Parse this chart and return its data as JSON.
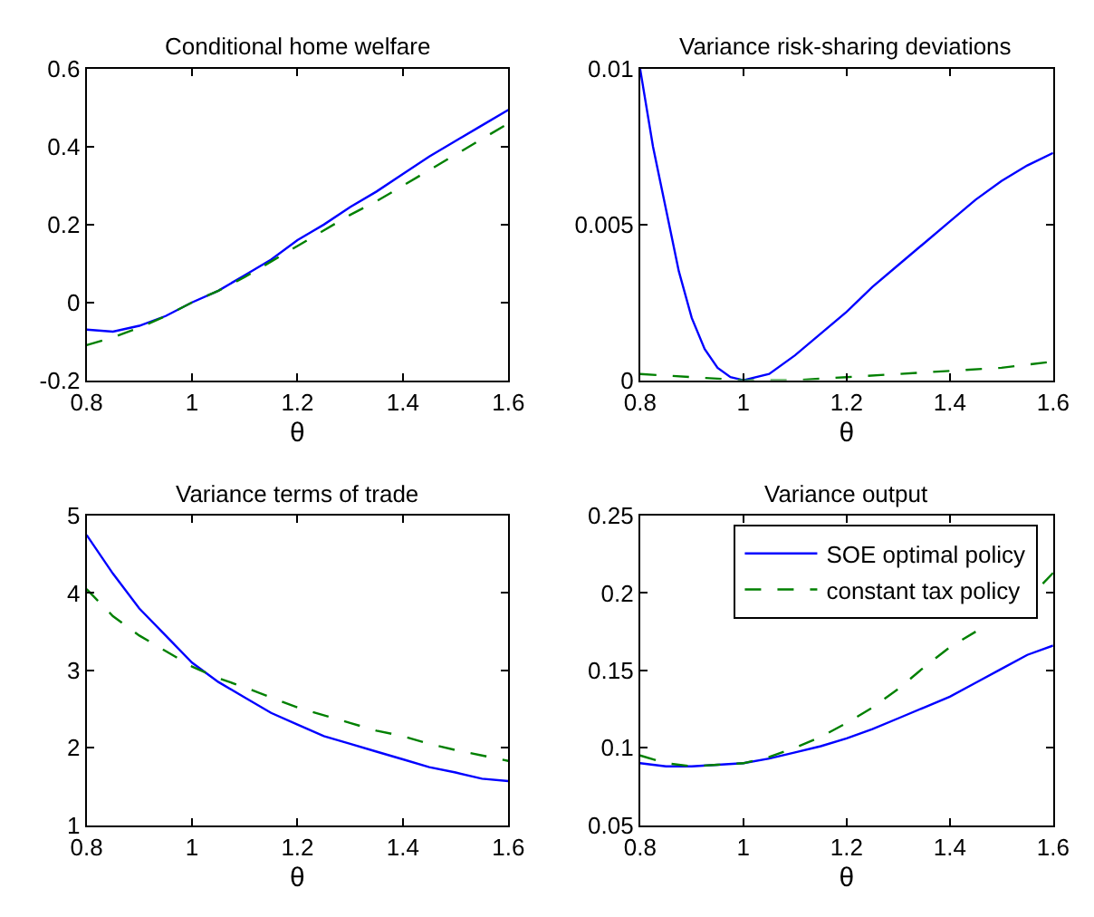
{
  "chart_data": [
    {
      "type": "line",
      "title": "Conditional home welfare",
      "xlabel": "θ",
      "xlim": [
        0.8,
        1.6
      ],
      "xticks": [
        0.8,
        1,
        1.2,
        1.4,
        1.6
      ],
      "ylim": [
        -0.2,
        0.6
      ],
      "yticks": [
        -0.2,
        0,
        0.2,
        0.4,
        0.6
      ],
      "grid": false,
      "x": [
        0.8,
        0.85,
        0.9,
        0.95,
        1.0,
        1.05,
        1.1,
        1.15,
        1.2,
        1.25,
        1.3,
        1.35,
        1.4,
        1.45,
        1.5,
        1.55,
        1.6
      ],
      "series": [
        {
          "color": "#0000ff",
          "line_style": "solid",
          "values": [
            -0.07,
            -0.075,
            -0.06,
            -0.035,
            0.0,
            0.03,
            0.07,
            0.11,
            0.16,
            0.2,
            0.245,
            0.285,
            0.33,
            0.375,
            0.415,
            0.455,
            0.495
          ]
        },
        {
          "color": "#008000",
          "line_style": "dashed",
          "values": [
            -0.11,
            -0.09,
            -0.065,
            -0.035,
            0.0,
            0.03,
            0.065,
            0.105,
            0.145,
            0.185,
            0.225,
            0.26,
            0.3,
            0.34,
            0.38,
            0.42,
            0.46
          ]
        }
      ]
    },
    {
      "type": "line",
      "title": "Variance risk-sharing deviations",
      "xlabel": "θ",
      "xlim": [
        0.8,
        1.6
      ],
      "xticks": [
        0.8,
        1,
        1.2,
        1.4,
        1.6
      ],
      "ylim": [
        0,
        0.01
      ],
      "yticks": [
        0,
        0.005,
        0.01
      ],
      "grid": false,
      "series": [
        {
          "color": "#0000ff",
          "line_style": "solid",
          "x": [
            0.8,
            0.825,
            0.85,
            0.875,
            0.9,
            0.925,
            0.95,
            0.975,
            1.0,
            1.05,
            1.1,
            1.15,
            1.2,
            1.25,
            1.3,
            1.35,
            1.4,
            1.45,
            1.5,
            1.55,
            1.6
          ],
          "values": [
            0.01,
            0.0075,
            0.0055,
            0.0035,
            0.002,
            0.001,
            0.0004,
            0.0001,
            0,
            0.0002,
            0.0008,
            0.0015,
            0.0022,
            0.003,
            0.0037,
            0.0044,
            0.0051,
            0.0058,
            0.0064,
            0.0069,
            0.0073
          ]
        },
        {
          "color": "#008000",
          "line_style": "dashed",
          "x": [
            0.8,
            0.9,
            1.0,
            1.1,
            1.2,
            1.3,
            1.4,
            1.5,
            1.6
          ],
          "values": [
            0.0002,
            0.0001,
            0,
            0,
            0.0001,
            0.0002,
            0.0003,
            0.0004,
            0.0006
          ]
        }
      ]
    },
    {
      "type": "line",
      "title": "Variance terms of trade",
      "xlabel": "θ",
      "xlim": [
        0.8,
        1.6
      ],
      "xticks": [
        0.8,
        1,
        1.2,
        1.4,
        1.6
      ],
      "ylim": [
        1,
        5
      ],
      "yticks": [
        1,
        2,
        3,
        4,
        5
      ],
      "grid": false,
      "x": [
        0.8,
        0.85,
        0.9,
        0.95,
        1.0,
        1.05,
        1.1,
        1.15,
        1.2,
        1.25,
        1.3,
        1.35,
        1.4,
        1.45,
        1.5,
        1.55,
        1.6
      ],
      "series": [
        {
          "color": "#0000ff",
          "line_style": "solid",
          "values": [
            4.75,
            4.25,
            3.8,
            3.45,
            3.1,
            2.85,
            2.65,
            2.45,
            2.3,
            2.15,
            2.05,
            1.95,
            1.85,
            1.75,
            1.68,
            1.6,
            1.57
          ]
        },
        {
          "color": "#008000",
          "line_style": "dashed",
          "values": [
            4.05,
            3.7,
            3.45,
            3.25,
            3.05,
            2.9,
            2.78,
            2.65,
            2.52,
            2.42,
            2.32,
            2.22,
            2.15,
            2.05,
            1.97,
            1.9,
            1.83
          ]
        }
      ]
    },
    {
      "type": "line",
      "title": "Variance output",
      "xlabel": "θ",
      "xlim": [
        0.8,
        1.6
      ],
      "xticks": [
        0.8,
        1,
        1.2,
        1.4,
        1.6
      ],
      "ylim": [
        0.05,
        0.25
      ],
      "yticks": [
        0.05,
        0.1,
        0.15,
        0.2,
        0.25
      ],
      "grid": false,
      "legend": "top right",
      "x": [
        0.8,
        0.85,
        0.9,
        0.95,
        1.0,
        1.05,
        1.1,
        1.15,
        1.2,
        1.25,
        1.3,
        1.35,
        1.4,
        1.45,
        1.5,
        1.55,
        1.6
      ],
      "series": [
        {
          "name": "SOE optimal policy",
          "color": "#0000ff",
          "line_style": "solid",
          "values": [
            0.09,
            0.088,
            0.088,
            0.089,
            0.09,
            0.093,
            0.097,
            0.101,
            0.106,
            0.112,
            0.119,
            0.126,
            0.133,
            0.142,
            0.151,
            0.16,
            0.166
          ]
        },
        {
          "name": "constant tax policy",
          "color": "#008000",
          "line_style": "dashed",
          "x": [
            0.8,
            0.85,
            0.9,
            0.95,
            1.0,
            1.05,
            1.1,
            1.15,
            1.2,
            1.25,
            1.3,
            1.35,
            1.4,
            1.45,
            1.5,
            1.58,
            1.6
          ],
          "values": [
            0.095,
            0.09,
            0.088,
            0.089,
            0.09,
            0.094,
            0.1,
            0.107,
            0.116,
            0.126,
            0.138,
            0.152,
            0.165,
            0.175,
            null,
            0.206,
            0.213
          ]
        }
      ]
    }
  ]
}
